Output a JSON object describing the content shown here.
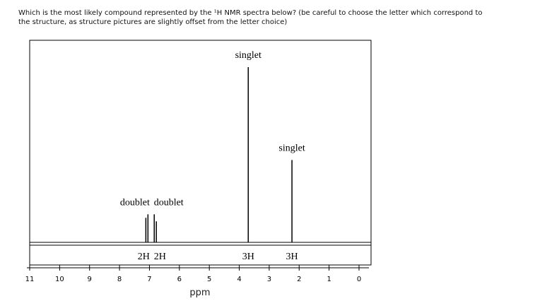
{
  "question": [
    "Which is the most likely compound represented by the ¹H NMR spectra below?  (be careful to choose the letter which correspond to",
    "the structure, as structure pictures are slightly offset from the letter choice)"
  ],
  "chart_data": {
    "type": "spectrum",
    "xlabel": "ppm",
    "xlim": [
      11,
      0
    ],
    "xticks": [
      11,
      10,
      9,
      8,
      7,
      6,
      5,
      4,
      3,
      2,
      1,
      0
    ],
    "ylim": [
      0,
      100
    ],
    "color": "#000000",
    "signals": [
      {
        "name": "doublet",
        "integration": "2H",
        "x": [
          7.12,
          7.05
        ],
        "values": [
          14,
          16
        ]
      },
      {
        "name": "doublet",
        "integration": "2H",
        "x": [
          6.84,
          6.77
        ],
        "values": [
          16,
          12
        ]
      },
      {
        "name": "singlet",
        "integration": "3H",
        "x": [
          3.7
        ],
        "values": [
          100
        ]
      },
      {
        "name": "singlet",
        "integration": "3H",
        "x": [
          2.24
        ],
        "values": [
          47
        ]
      }
    ]
  }
}
